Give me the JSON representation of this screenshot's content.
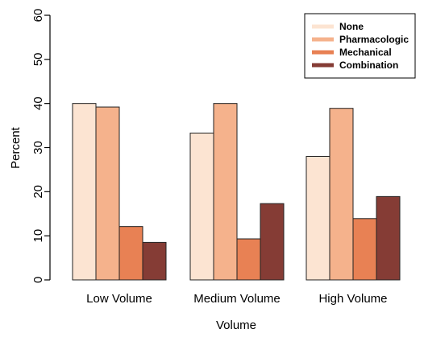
{
  "chart_data": {
    "type": "bar",
    "title": "",
    "xlabel": "Volume",
    "ylabel": "Percent",
    "ylim": [
      0,
      60
    ],
    "yticks": [
      0,
      10,
      20,
      30,
      40,
      50,
      60
    ],
    "categories": [
      "Low Volume",
      "Medium Volume",
      "High Volume"
    ],
    "series": [
      {
        "name": "None",
        "values": [
          40,
          33.3,
          28
        ],
        "color": "#FCE4D2"
      },
      {
        "name": "Pharmacologic",
        "values": [
          39.2,
          40,
          38.9
        ],
        "color": "#F5B28C"
      },
      {
        "name": "Mechanical",
        "values": [
          12.1,
          9.3,
          13.9
        ],
        "color": "#E88154"
      },
      {
        "name": "Combination",
        "values": [
          8.5,
          17.3,
          18.9
        ],
        "color": "#853C35"
      }
    ],
    "legend_position": "top-right",
    "grid": false
  }
}
